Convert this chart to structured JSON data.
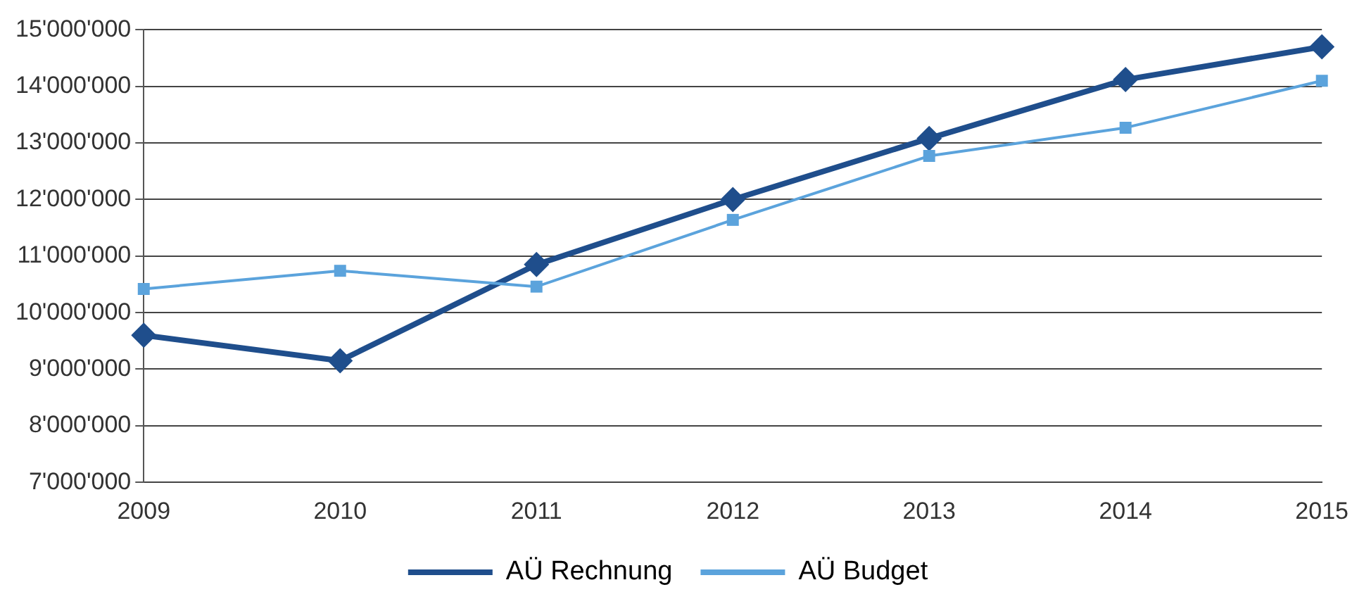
{
  "chart_data": {
    "type": "line",
    "categories": [
      "2009",
      "2010",
      "2011",
      "2012",
      "2013",
      "2014",
      "2015"
    ],
    "series": [
      {
        "name": "AÜ Rechnung",
        "color": "#1f4e8c",
        "marker": "diamond",
        "values": [
          9600000,
          9150000,
          10850000,
          12000000,
          13080000,
          14120000,
          14700000
        ]
      },
      {
        "name": "AÜ Budget",
        "color": "#5ba3dc",
        "marker": "square",
        "values": [
          10420000,
          10740000,
          10460000,
          11640000,
          12770000,
          13270000,
          14100000
        ]
      }
    ],
    "ylim": [
      7000000,
      15000000
    ],
    "yticks": [
      {
        "value": 7000000,
        "label": "7'000'000"
      },
      {
        "value": 8000000,
        "label": "8'000'000"
      },
      {
        "value": 9000000,
        "label": "9'000'000"
      },
      {
        "value": 10000000,
        "label": "10'000'000"
      },
      {
        "value": 11000000,
        "label": "11'000'000"
      },
      {
        "value": 12000000,
        "label": "12'000'000"
      },
      {
        "value": 13000000,
        "label": "13'000'000"
      },
      {
        "value": 14000000,
        "label": "14'000'000"
      },
      {
        "value": 15000000,
        "label": "15'000'000"
      }
    ],
    "grid": "y",
    "legend": "bottom",
    "line_style": "solid"
  }
}
